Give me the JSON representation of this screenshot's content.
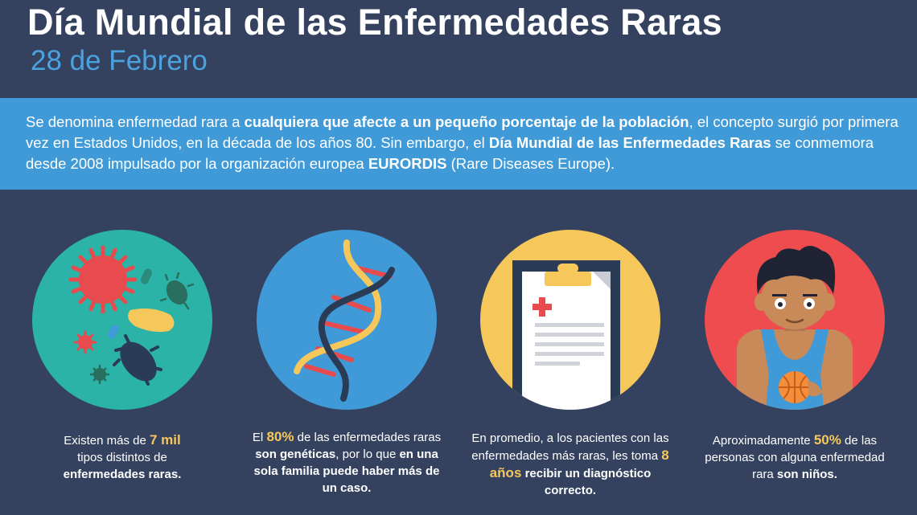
{
  "header": {
    "title": "Día Mundial de las Enfermedades Raras",
    "date": "28 de Febrero"
  },
  "intro": {
    "t1": "Se denomina enfermedad rara a ",
    "b1": "cualquiera que afecte a un pequeño porcentaje de la población",
    "t2": ", el concepto surgió por primera vez en Estados Unidos, en la década de los años 80. Sin embargo, el ",
    "b2": "Día Mundial de las Enfermedades Raras",
    "t3": " se conmemora desde 2008 impulsado por la organización europea ",
    "b3": "EURORDIS",
    "t4": " (Rare Diseases Europe)."
  },
  "facts": [
    {
      "icon": "microbes-icon",
      "color": "#2ab3a6",
      "t1": "Existen más de ",
      "hl": "7 mil",
      "t2": " tipos distintos de ",
      "b1": "enfermedades raras.",
      "t3": ""
    },
    {
      "icon": "dna-icon",
      "color": "#3f9ad7",
      "t1": "El ",
      "hl": "80%",
      "t2": " de las enfermedades raras ",
      "b1": "son genéticas",
      "t3": ", por lo que ",
      "b2": "en una sola familia puede haber más de un caso."
    },
    {
      "icon": "clipboard-icon",
      "color": "#f6c75a",
      "t1": "En promedio, a los pacientes con las enfermedades más raras, les toma ",
      "hl": "8 años",
      "t2": " ",
      "b1": "recibir un diagnóstico correcto."
    },
    {
      "icon": "child-icon",
      "color": "#ee4c4f",
      "t1": "Aproximadamente ",
      "hl": "50%",
      "t2": " de las personas con alguna enfermedad rara ",
      "b1": "son niños."
    }
  ],
  "colors": {
    "background": "#34425f",
    "banner": "#3f9ad7",
    "highlight": "#f6c75a"
  }
}
